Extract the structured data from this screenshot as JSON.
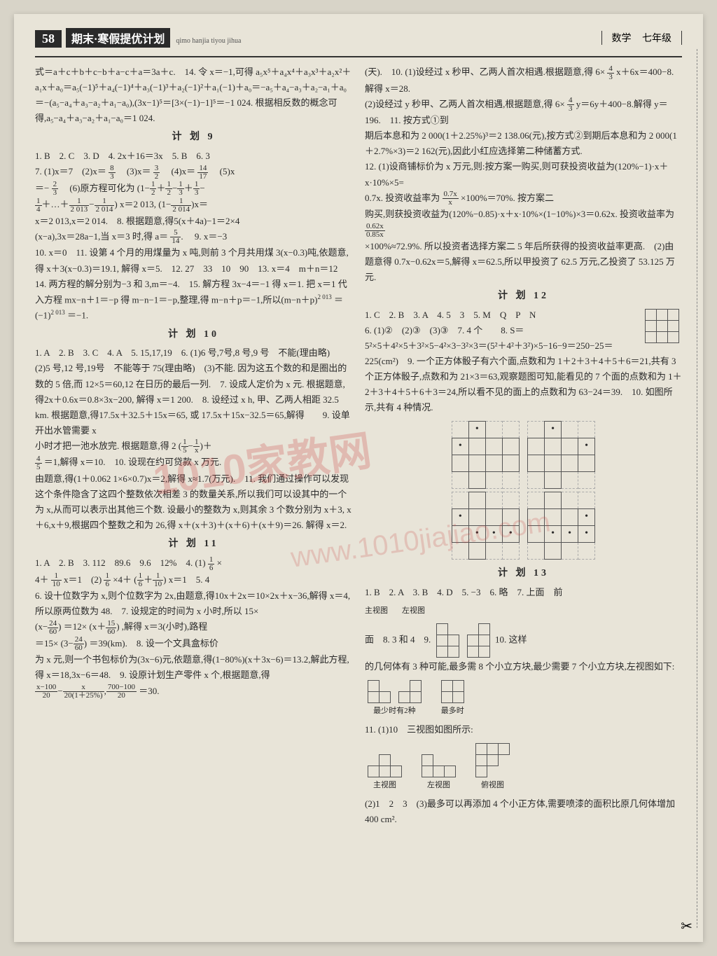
{
  "header": {
    "page_number": "58",
    "series": "期末·寒假提优计划",
    "pinyin": "qimo  hanjia  tiyou  jihua",
    "subject": "数学",
    "grade": "七年级"
  },
  "watermark": {
    "main": "1010家教网",
    "sub": "www.1010jiajiao.com"
  },
  "plan9": {
    "title": "计 划 9",
    "answers": "1. B　2. C　3. D　4. 2x＋16＝3x　5. B　6. 3",
    "q7_prefix": "7. (1)x＝7　(2)x＝",
    "q7_3": "　(3)x＝",
    "q7_4": "　(4)x＝",
    "q7_5": "　(5)x",
    "q7_eq": "＝−",
    "q7_6": "　(6)原方程可化为",
    "q7_expand": "x＝2 013,",
    "q7_result": "x＝2 013,x＝2 014.　8. 根据题意,得5(x＋4a)−1＝2×4",
    "q8b": "(x−a),3x＝28a−1,当 x＝3 时,得 a＝",
    "q9": "　9. x＝−3",
    "q10": "10. x＝0　11. 设第 4 个月的用煤量为 x 吨,则前 3 个月共用煤 3(x−0.3)吨,依题意,得 x＋3(x−0.3)＝19.1, 解得 x＝5.　12. 27　33　10　90　13. x＝4　m＋n＝12　14. 两方程的解分别为−3 和 3,m＝−4.　15. 解方程 3x−4＝−1 得 x＝1. 把 x＝1 代入方程 mx−n＋1＝−p 得 m−n−1＝−p,整理,得 m−n＋p＝−1,所以(m−n＋p)",
    "q15_exp": "2 013",
    "q15_end": "＝(−1)",
    "q15_end2": "＝−1."
  },
  "plan10": {
    "title": "计 划 10",
    "line1": "1. A　2. B　3. C　4. A　5. 15,17,19　6. (1)6 号,7号,8 号,9 号　不能(理由略)　(2)5 号,12 号,19号　不能等于 75(理由略)　(3)不能. 因为这五个数的和是圈出的数的 5 倍,而 12×5＝60,12 在日历的最后一列.　7. 设成人定价为 x 元. 根据题意,得2x＋0.6x＝0.8×3x−200, 解得 x＝1 200.　8. 设经过 x h, 甲、乙两人相距 32.5 km. 根据题意,得17.5x＋32.5＋15x＝65, 或 17.5x＋15x−32.5＝65,解得　　9. 设单开出水管需要 x",
    "q9_text": "小时才把一池水放完. 根据题意,得 2",
    "q9_mid": "＋",
    "q9_end": "＝1,解得 x＝10.　10. 设现在约可贷款 x 万元.",
    "q10b": "由题意,得(1＋0.062 1×6×0.7)x＝2,解得 x≈1.7(万元).　11. 我们通过操作可以发现这个条件隐含了这四个整数依次相差 3 的数量关系,所以我们可以设其中的一个为 x,从而可以表示出其他三个数. 设最小的整数为 x,则其余 3 个数分别为 x＋3, x＋6,x＋9,根据四个整数之和为 26,得 x＋(x＋3)＋(x＋6)＋(x＋9)＝26. 解得 x＝2."
  },
  "plan11": {
    "title": "计 划 11",
    "line1": "1. A　2. B　3. 112　89.6　9.6　12%　4. (1)",
    "line1b": "×",
    "line2a": "4＋",
    "line2b": "x＝1　(2)",
    "line2c": "×4＋",
    "line2d": "x＝1　5. 4",
    "line3": "6. 设十位数字为 x,则个位数字为 2x,由题意,得10x＋2x＝10×2x＋x−36,解得 x＝4,所以原两位数为 48.　7. 设规定的时间为 x 小时,所以 15×",
    "q7_eq": "＝12×",
    "q7_end": ",解得 x＝3(小时),路程",
    "q7_calc": "＝15×",
    "q7_res": "＝39(km).　8. 设一个文具盒标价",
    "q8": "为 x 元,则一个书包标价为(3x−6)元,依题意,得(1−80%)(x＋3x−6)＝13.2,解此方程,得 x＝18,3x−6＝48.　9. 设原计划生产零件 x 个,根据题意,得",
    "q9_eq": "＝30."
  },
  "col2_intro": "(天).　10. (1)设经过 x 秒甲、乙两人首次相遇.根据题意,得 6×",
  "col2_intro2": "x＋6x＝400−8. 解得 x＝28.",
  "col2_p2": "(2)设经过 y 秒甲、乙两人首次相遇,根据题意,得 6×",
  "col2_p2b": "y＝6y＋400−8.解得 y＝196.　11. 按方式①到",
  "col2_p3": "期后本息和为 2 000(1＋2.25%)³＝2 138.06(元),按方式②到期后本息和为 2 000(1＋2.7%×3)＝2 162(元),因此小红应选择第二种储蓄方式.",
  "col2_p4": "12. (1)设商铺标价为 x 万元,则:按方案一购买,则可获投资收益为(120%−1)·x＋x·10%×5=",
  "col2_p4b": "0.7x. 投资收益率为",
  "col2_p4c": "×100%＝70%. 按方案二",
  "col2_p5": "购买,则获投资收益为(120%−0.85)·x＋x·10%×(1−10%)×3＝0.62x. 投资收益率为",
  "col2_p5b": "×100%≈72.9%. 所以投资者选择方案二 5 年后所获得的投资收益率更高.　(2)由题意得 0.7x−0.62x＝5,解得 x＝62.5,所以甲投资了 62.5 万元,乙投资了 53.125 万元.",
  "plan12": {
    "title": "计 划 12",
    "line1": "1. C　2. B　3. A　4. 5　3　5. M　Q　P　N",
    "line2": "6. (1)②　(2)③　(3)③　7. 4 个　　8. S＝",
    "line3": "5²×5＋4²×5＋3²×5−4²×3−3²×3＝(5²＋4²＋3²)×5−16−9＝250−25＝225(cm²)　9. 一个正方体骰子有六个面,点数和为 1＋2＋3＋4＋5＋6＝21,共有 3个正方体骰子,点数和为 21×3＝63,观察题图可知,能看见的 7 个面的点数和为 1＋2＋3＋4＋5＋6＋3＝24,所以看不见的面上的点数和为 63−24＝39.　10. 如图所示,共有 4 种情况."
  },
  "plan13": {
    "title": "计 划 13",
    "line1": "1. B　2. A　3. B　4. D　5. −3　6. 略　7. 上面　前",
    "labels": {
      "main": "主视图",
      "left": "左视图",
      "top": "俯视图",
      "least": "最少时有2种",
      "most": "最多时"
    },
    "line2": "面　8. 3 和 4　9.",
    "line2b": "10. 这样",
    "line3": "的几何体有 3 种可能,最多需 8 个小立方块,最少需要 7 个小立方块,左视图如下:",
    "line4": "11. (1)10　三视图如图所示:",
    "line5": "(2)1　2　3　(3)最多可以再添加 4 个小正方体,需要喷漆的面积比原几何体增加 400 cm²."
  },
  "preamble": "式＝a＋c＋b＋c−b＋a−c＋a＝3a＋c.　14. 令 x＝−1,可得 a₅x⁵＋a₄x⁴＋a₃x³＋a₂x²＋a₁x＋a₀＝a₅(−1)⁵＋a₄(−1)⁴＋a₃(−1)³＋a₂(−1)²＋a₁(−1)＋a₀＝−a₅＋a₄−a₃＋a₂−a₁＋a₀＝−(a₅−a₄＋a₃−a₂＋a₁−a₀),(3x−1)⁵＝[3×(−1)−1]⁵＝−1 024. 根据相反数的概念可得,a₅−a₄＋a₃−a₂＋a₁−a₀＝1 024."
}
